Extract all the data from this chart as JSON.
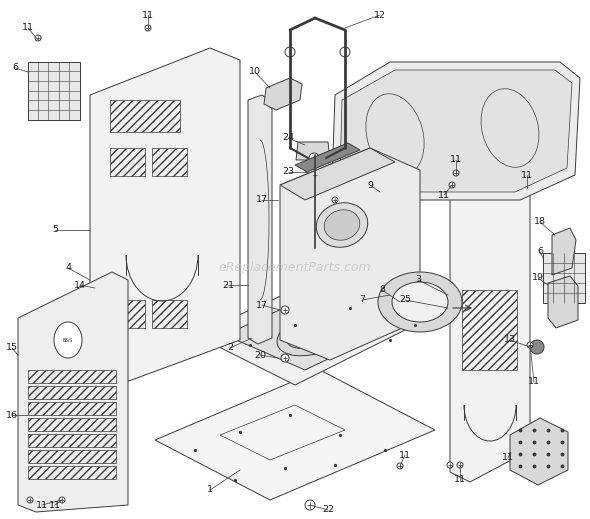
{
  "bg_color": "#ffffff",
  "line_color": "#3a3a3a",
  "label_color": "#1a1a1a",
  "watermark": "eReplacementParts.com",
  "watermark_color": "#bbbbbb",
  "lw": 0.7,
  "fig_w": 5.9,
  "fig_h": 5.19,
  "dpi": 100
}
